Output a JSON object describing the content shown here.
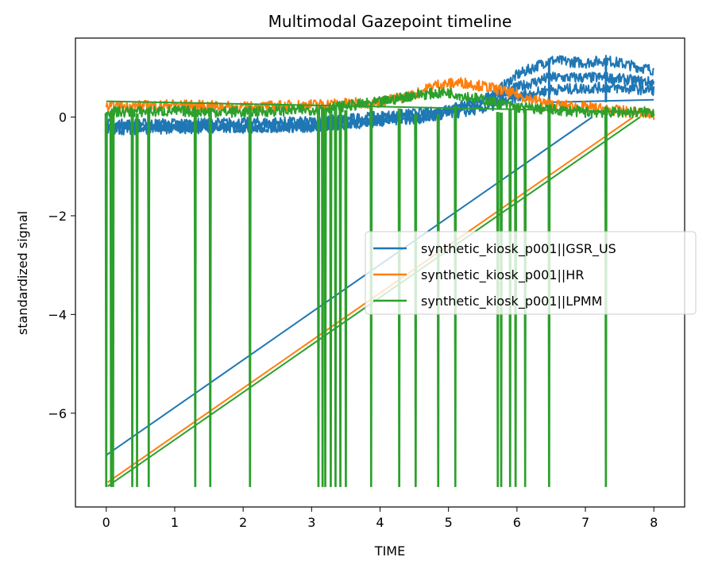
{
  "chart_data": {
    "type": "line",
    "title": "Multimodal Gazepoint timeline",
    "xlabel": "TIME",
    "ylabel": "standardized signal",
    "xlim": [
      -0.45,
      8.45
    ],
    "ylim": [
      -7.9,
      1.6
    ],
    "xticks": [
      0,
      1,
      2,
      3,
      4,
      5,
      6,
      7,
      8
    ],
    "xtick_labels": [
      "0",
      "1",
      "2",
      "3",
      "4",
      "5",
      "6",
      "7",
      "8"
    ],
    "yticks": [
      0,
      -2,
      -4,
      -6
    ],
    "ytick_labels": [
      "0",
      "−2",
      "−4",
      "−6"
    ],
    "grid": false,
    "legend_position": "center-right",
    "series": [
      {
        "name": "synthetic_kiosk_p001||GSR_US",
        "color": "#1f77b4",
        "segments": [
          {
            "x": [
              0,
              3.0,
              4.8,
              5.6,
              6.0,
              6.47,
              7.0,
              7.3,
              8.0
            ],
            "y": [
              -0.2,
              -0.2,
              0.05,
              0.4,
              0.85,
              1.15,
              1.1,
              1.15,
              0.95
            ]
          },
          {
            "x": [
              0,
              3.0,
              4.8,
              5.6,
              6.0,
              6.47,
              7.3,
              8.0
            ],
            "y": [
              -0.15,
              -0.1,
              0.1,
              0.35,
              0.6,
              0.8,
              0.8,
              0.7
            ]
          },
          {
            "x": [
              0,
              3.0,
              4.8,
              5.6,
              6.0,
              6.47,
              7.3,
              8.0
            ],
            "y": [
              -0.25,
              -0.2,
              0.0,
              0.2,
              0.4,
              0.55,
              0.6,
              0.55
            ]
          },
          {
            "x": [
              6.47,
              8.0
            ],
            "y": [
              0.3,
              0.35
            ]
          },
          {
            "x": [
              0,
              7.1
            ],
            "y": [
              -6.85,
              0.0
            ]
          }
        ],
        "spikes": [
          {
            "x": 6.47,
            "y0": 0.3,
            "y1": 1.15
          },
          {
            "x": 7.3,
            "y0": 0.3,
            "y1": 1.2
          }
        ]
      },
      {
        "name": "synthetic_kiosk_p001||HR",
        "color": "#ff7f0e",
        "segments": [
          {
            "x": [
              0,
              1.0,
              2.0,
              3.0,
              4.0,
              4.5,
              4.8,
              5.2,
              5.6,
              6.0,
              6.5,
              7.0,
              8.0
            ],
            "y": [
              0.2,
              0.25,
              0.2,
              0.25,
              0.3,
              0.45,
              0.65,
              0.7,
              0.6,
              0.45,
              0.25,
              0.2,
              0.05
            ]
          },
          {
            "x": [
              0.02,
              7.7
            ],
            "y": [
              -7.4,
              0.0
            ]
          }
        ]
      },
      {
        "name": "synthetic_kiosk_p001||LPMM",
        "color": "#2ca02c",
        "segments": [
          {
            "x": [
              0,
              1.0,
              2.0,
              3.0,
              4.0,
              4.5,
              5.0,
              5.5,
              6.0,
              6.5,
              7.0,
              8.0
            ],
            "y": [
              0.1,
              0.12,
              0.1,
              0.15,
              0.3,
              0.45,
              0.5,
              0.35,
              0.2,
              0.15,
              0.1,
              0.1
            ]
          },
          {
            "x": [
              0,
              8.0
            ],
            "y": [
              0.32,
              0.1
            ]
          },
          {
            "x": [
              0.02,
              7.8
            ],
            "y": [
              -7.48,
              0.0
            ]
          }
        ],
        "dips": [
          0.0,
          0.07,
          0.1,
          0.38,
          0.45,
          0.62,
          1.3,
          1.52,
          2.1,
          3.1,
          3.16,
          3.2,
          3.28,
          3.35,
          3.42,
          3.5,
          3.87,
          4.28,
          4.52,
          4.85,
          5.1,
          5.72,
          5.77,
          5.9,
          5.98,
          6.12,
          6.47,
          7.3
        ],
        "dip_min": -7.48
      }
    ]
  }
}
